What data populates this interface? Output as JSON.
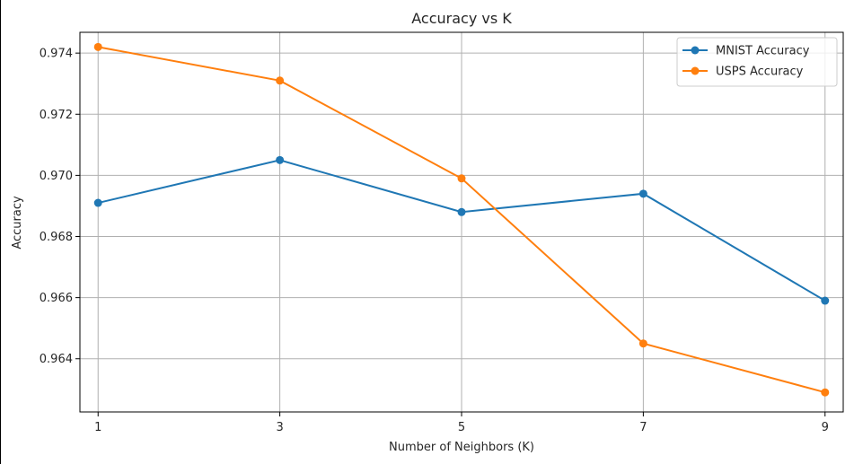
{
  "chart_data": {
    "type": "line",
    "title": "Accuracy vs K",
    "xlabel": "Number of Neighbors (K)",
    "ylabel": "Accuracy",
    "x": [
      1,
      3,
      5,
      7,
      9
    ],
    "xticks": [
      "1",
      "3",
      "5",
      "7",
      "9"
    ],
    "yticks": [
      "0.964",
      "0.966",
      "0.968",
      "0.970",
      "0.972",
      "0.974"
    ],
    "ytick_values": [
      0.964,
      0.966,
      0.968,
      0.97,
      0.972,
      0.974
    ],
    "xlim": [
      0.8,
      9.2
    ],
    "ylim": [
      0.96226,
      0.97468
    ],
    "grid": true,
    "legend_position": "top-right",
    "series": [
      {
        "name": "MNIST Accuracy",
        "color": "#1f77b4",
        "marker": "circle",
        "values": [
          0.9691,
          0.9705,
          0.9688,
          0.9694,
          0.9659
        ]
      },
      {
        "name": "USPS Accuracy",
        "color": "#ff7f0e",
        "marker": "circle",
        "values": [
          0.9742,
          0.9731,
          0.9699,
          0.9645,
          0.9629
        ]
      }
    ]
  }
}
